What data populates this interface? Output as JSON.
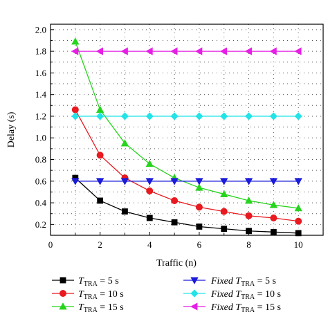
{
  "chart_data": {
    "type": "line",
    "xlabel": "Traffic (n)",
    "ylabel": "Delay (s)",
    "xlim": [
      0,
      11
    ],
    "ylim": [
      0.1,
      2.05
    ],
    "x_ticks": [
      0,
      2,
      4,
      6,
      8,
      10
    ],
    "y_ticks": [
      0.2,
      0.4,
      0.6,
      0.8,
      1.0,
      1.2,
      1.4,
      1.6,
      1.8,
      2.0
    ],
    "x_tick_labels": [
      "0",
      "2",
      "4",
      "6",
      "8",
      "10"
    ],
    "y_tick_labels": [
      "0.2",
      "0.4",
      "0.6",
      "0.8",
      "1.0",
      "1.2",
      "1.4",
      "1.6",
      "1.8",
      "2.0"
    ],
    "grid": "dotted",
    "legend_position": "bottom",
    "x": [
      1,
      2,
      3,
      4,
      5,
      6,
      7,
      8,
      9,
      10
    ],
    "series": [
      {
        "legend_main": "T",
        "legend_sub": "TRA",
        "legend_suffix": " = 5 s",
        "color": "#000000",
        "marker": "square",
        "values": [
          0.63,
          0.42,
          0.32,
          0.26,
          0.22,
          0.18,
          0.16,
          0.14,
          0.13,
          0.12
        ]
      },
      {
        "legend_main": "T",
        "legend_sub": "TRA",
        "legend_suffix": " = 10 s",
        "color": "#e8191f",
        "marker": "circle",
        "values": [
          1.26,
          0.84,
          0.63,
          0.51,
          0.42,
          0.36,
          0.32,
          0.28,
          0.26,
          0.23
        ]
      },
      {
        "legend_main": "T",
        "legend_sub": "TRA",
        "legend_suffix": " = 15 s",
        "color": "#26d41c",
        "marker": "triangle-up",
        "values": [
          1.89,
          1.26,
          0.95,
          0.76,
          0.63,
          0.54,
          0.48,
          0.42,
          0.38,
          0.35
        ]
      },
      {
        "legend_main": "Fixed T",
        "legend_sub": "TRA",
        "legend_suffix": " = 5 s",
        "color": "#1a1adb",
        "marker": "triangle-down",
        "values": [
          0.6,
          0.6,
          0.6,
          0.6,
          0.6,
          0.6,
          0.6,
          0.6,
          0.6,
          0.6
        ]
      },
      {
        "legend_main": "Fixed T",
        "legend_sub": "TRA",
        "legend_suffix": " = 10 s",
        "color": "#22e3e6",
        "marker": "diamond",
        "values": [
          1.2,
          1.2,
          1.2,
          1.2,
          1.2,
          1.2,
          1.2,
          1.2,
          1.2,
          1.2
        ]
      },
      {
        "legend_main": "Fixed T",
        "legend_sub": "TRA",
        "legend_suffix": " = 15 s",
        "color": "#e61ee6",
        "marker": "triangle-left",
        "values": [
          1.8,
          1.8,
          1.8,
          1.8,
          1.8,
          1.8,
          1.8,
          1.8,
          1.8,
          1.8
        ]
      }
    ]
  }
}
